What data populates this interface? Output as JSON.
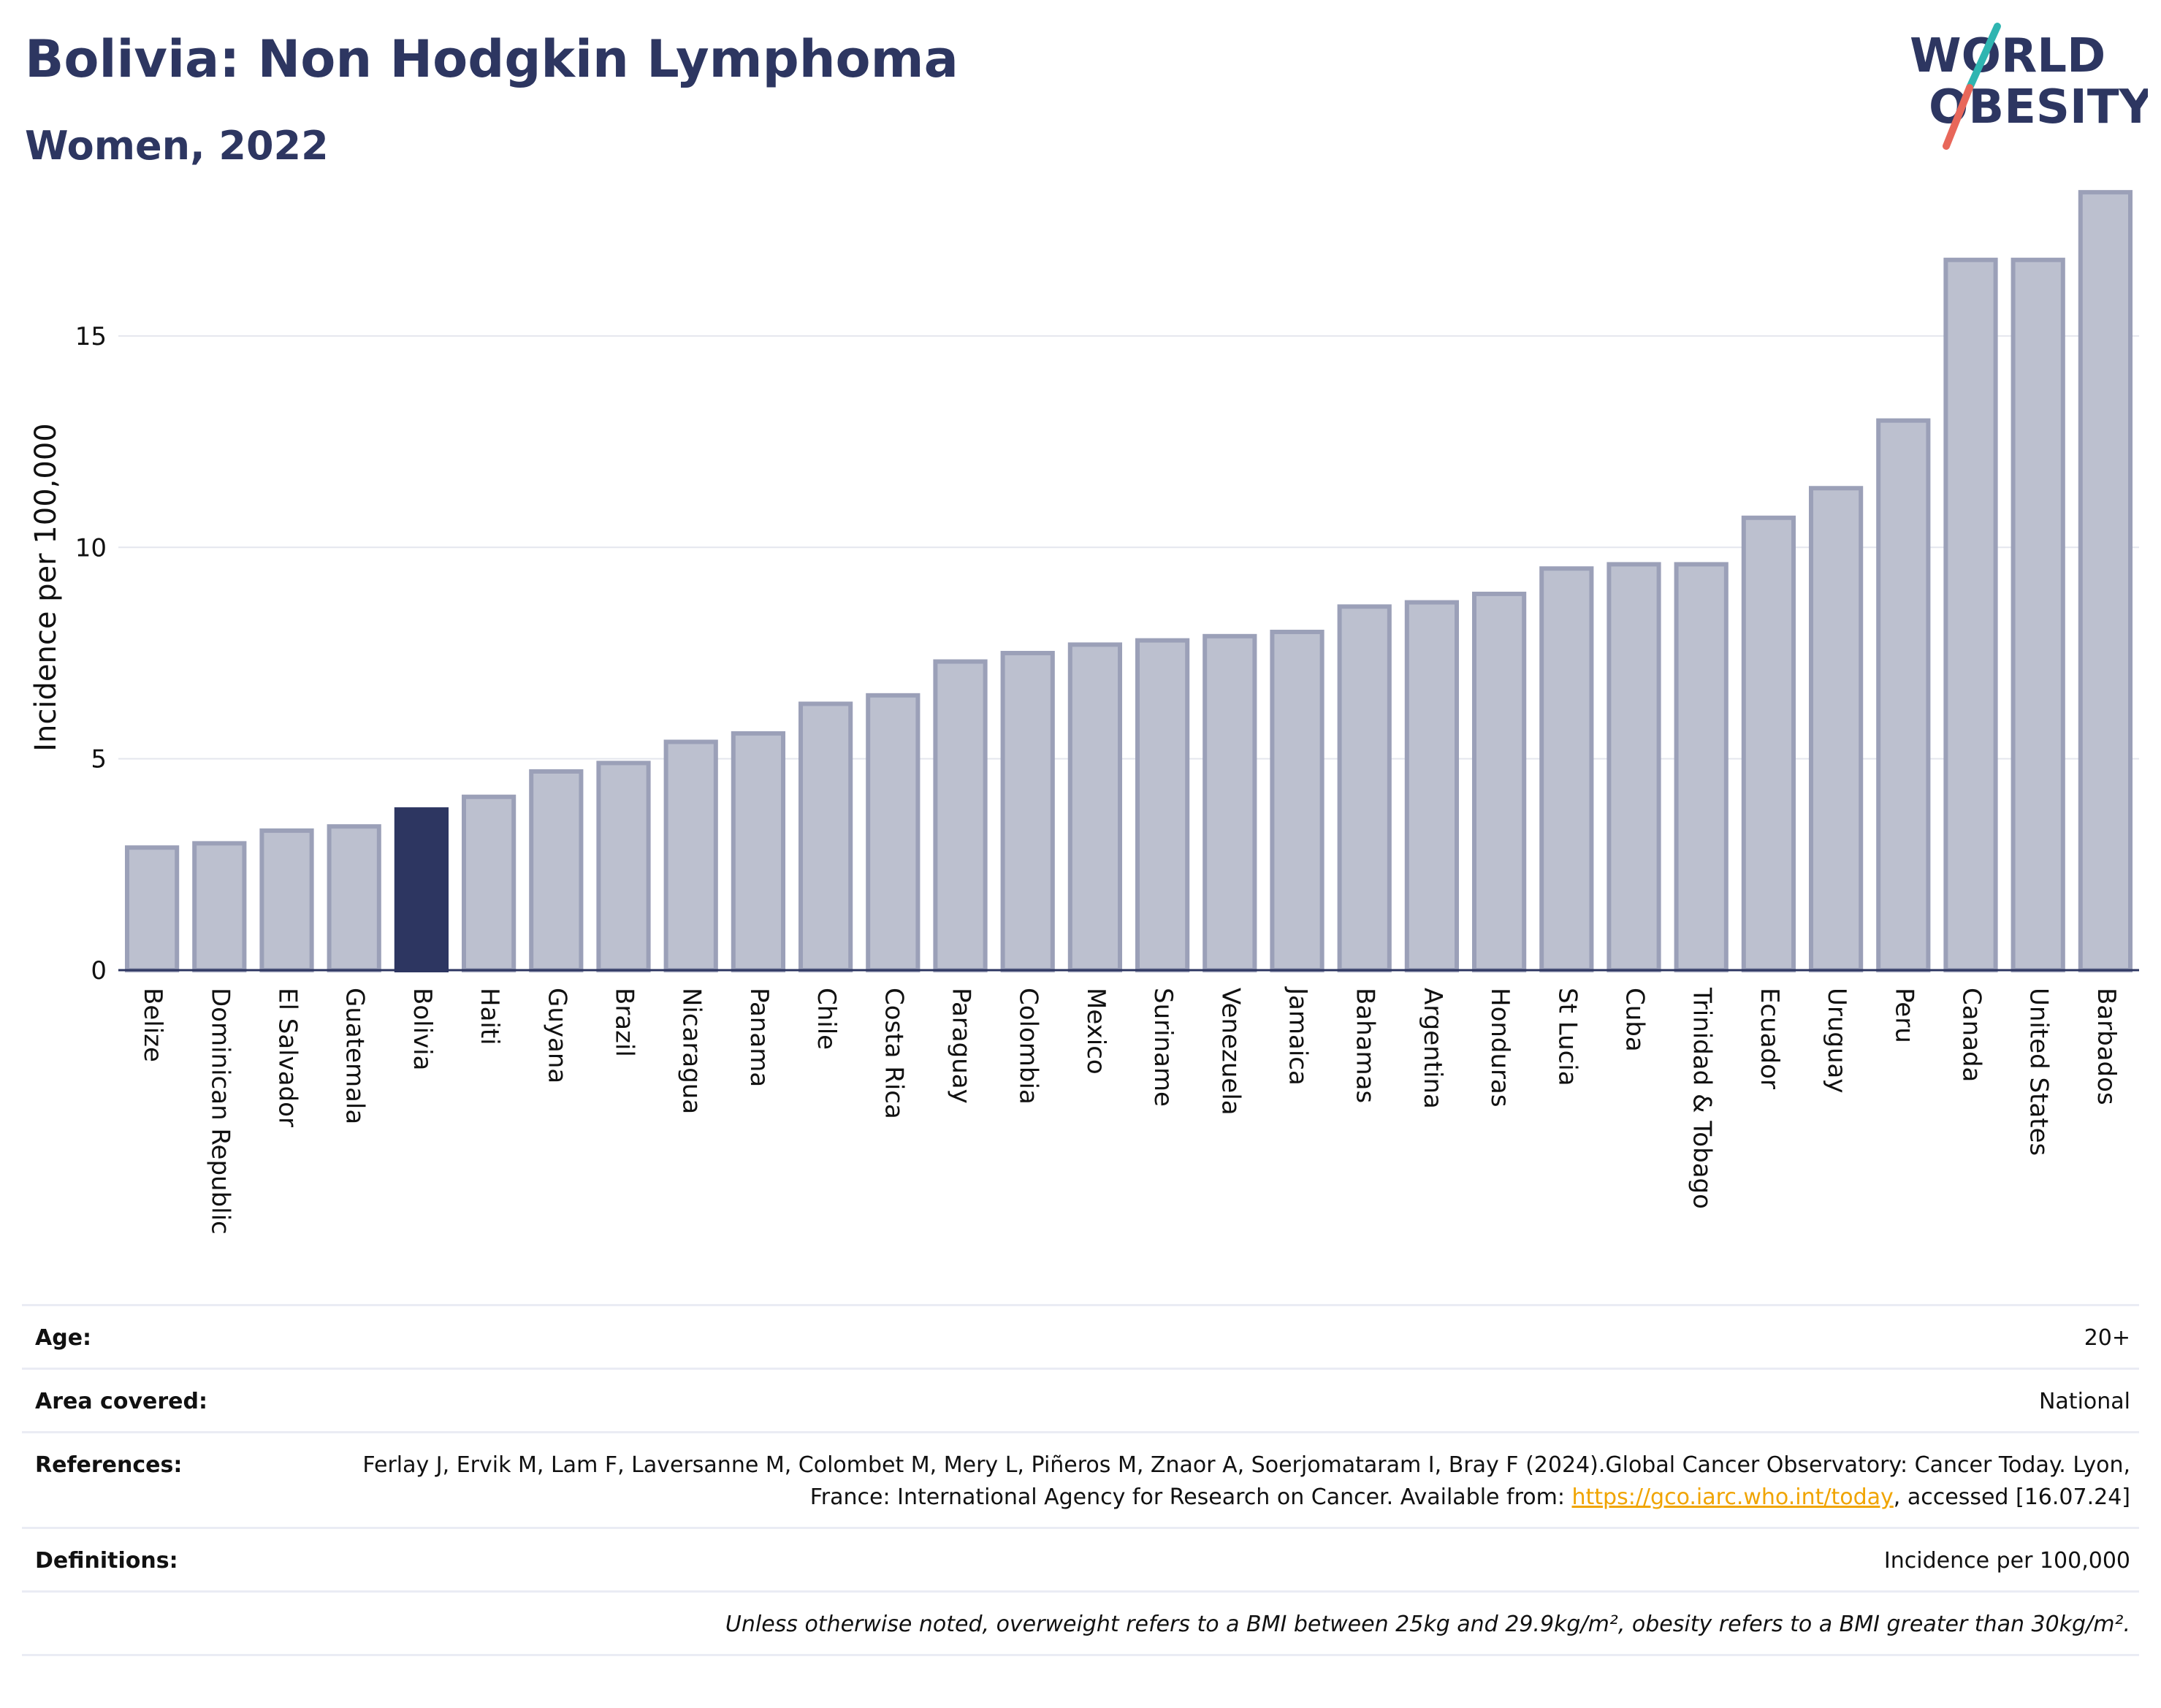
{
  "header": {
    "title": "Bolivia: Non Hodgkin Lymphoma",
    "subtitle": "Women, 2022"
  },
  "logo": {
    "line1": "WORLD",
    "line2": "OBESITY"
  },
  "colors": {
    "highlight": "#2d3661",
    "bar_fill": "#bcc0cf",
    "bar_stroke": "#9ba0b8",
    "grid": "#e4e6ee",
    "title": "#2d3661",
    "logo_teal": "#2fb5b1",
    "logo_coral": "#e8675a"
  },
  "chart_data": {
    "type": "bar",
    "title": "Bolivia: Non Hodgkin Lymphoma",
    "subtitle": "Women, 2022",
    "ylabel": "Incidence per 100,000",
    "xlabel": "",
    "ylim": [
      0,
      18.8
    ],
    "yticks": [
      0,
      5,
      10,
      15
    ],
    "grid": true,
    "highlight": "Bolivia",
    "categories": [
      "Belize",
      "Dominican Republic",
      "El Salvador",
      "Guatemala",
      "Bolivia",
      "Haiti",
      "Guyana",
      "Brazil",
      "Nicaragua",
      "Panama",
      "Chile",
      "Costa Rica",
      "Paraguay",
      "Colombia",
      "Mexico",
      "Suriname",
      "Venezuela",
      "Jamaica",
      "Bahamas",
      "Argentina",
      "Honduras",
      "St Lucia",
      "Cuba",
      "Trinidad & Tobago",
      "Ecuador",
      "Uruguay",
      "Peru",
      "Canada",
      "United States",
      "Barbados"
    ],
    "values": [
      2.9,
      3.0,
      3.3,
      3.4,
      3.8,
      4.1,
      4.7,
      4.9,
      5.4,
      5.6,
      6.3,
      6.5,
      7.3,
      7.5,
      7.7,
      7.8,
      7.9,
      8.0,
      8.6,
      8.7,
      8.9,
      9.5,
      9.6,
      9.6,
      10.7,
      11.4,
      13.0,
      16.8,
      16.8,
      18.4
    ]
  },
  "meta": {
    "age_label": "Age:",
    "age_value": "20+",
    "area_label": "Area covered:",
    "area_value": "National",
    "references_label": "References:",
    "references_text_1": "Ferlay J, Ervik M, Lam F, Laversanne M, Colombet M, Mery L, Piñeros M, Znaor A, Soerjomataram I, Bray F (2024).Global Cancer Observatory: Cancer Today. Lyon, France: International Agency for Research on Cancer. Available from: ",
    "references_link": "https://gco.iarc.who.int/today",
    "references_text_2": ", accessed [16.07.24]",
    "definitions_label": "Definitions:",
    "definitions_value": "Incidence per 100,000",
    "note": "Unless otherwise noted, overweight refers to a BMI between 25kg and 29.9kg/m², obesity refers to a BMI greater than 30kg/m²."
  }
}
